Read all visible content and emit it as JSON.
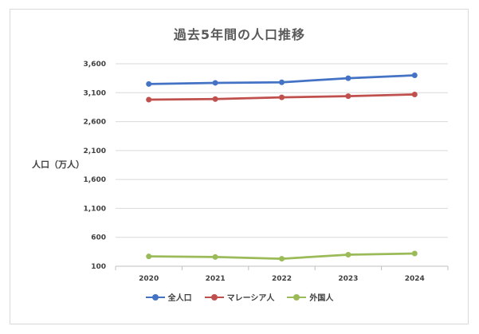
{
  "chart_data": {
    "type": "line",
    "title": "過去5年間の人口推移",
    "xlabel": "",
    "ylabel": "人口（万人）",
    "categories": [
      "2020",
      "2021",
      "2022",
      "2023",
      "2024"
    ],
    "y_ticks": [
      "3,600",
      "3,100",
      "2,600",
      "2,100",
      "1,600",
      "1,100",
      "600",
      "100"
    ],
    "ylim": [
      100,
      3600
    ],
    "grid": true,
    "legend_position": "bottom",
    "series": [
      {
        "name": "全人口",
        "color": "#4472C4",
        "values": [
          3250,
          3270,
          3280,
          3350,
          3400
        ]
      },
      {
        "name": "マレーシア人",
        "color": "#C0504D",
        "values": [
          2980,
          2990,
          3020,
          3040,
          3070
        ]
      },
      {
        "name": "外国人",
        "color": "#9BBB59",
        "values": [
          270,
          260,
          230,
          300,
          320
        ]
      }
    ]
  }
}
